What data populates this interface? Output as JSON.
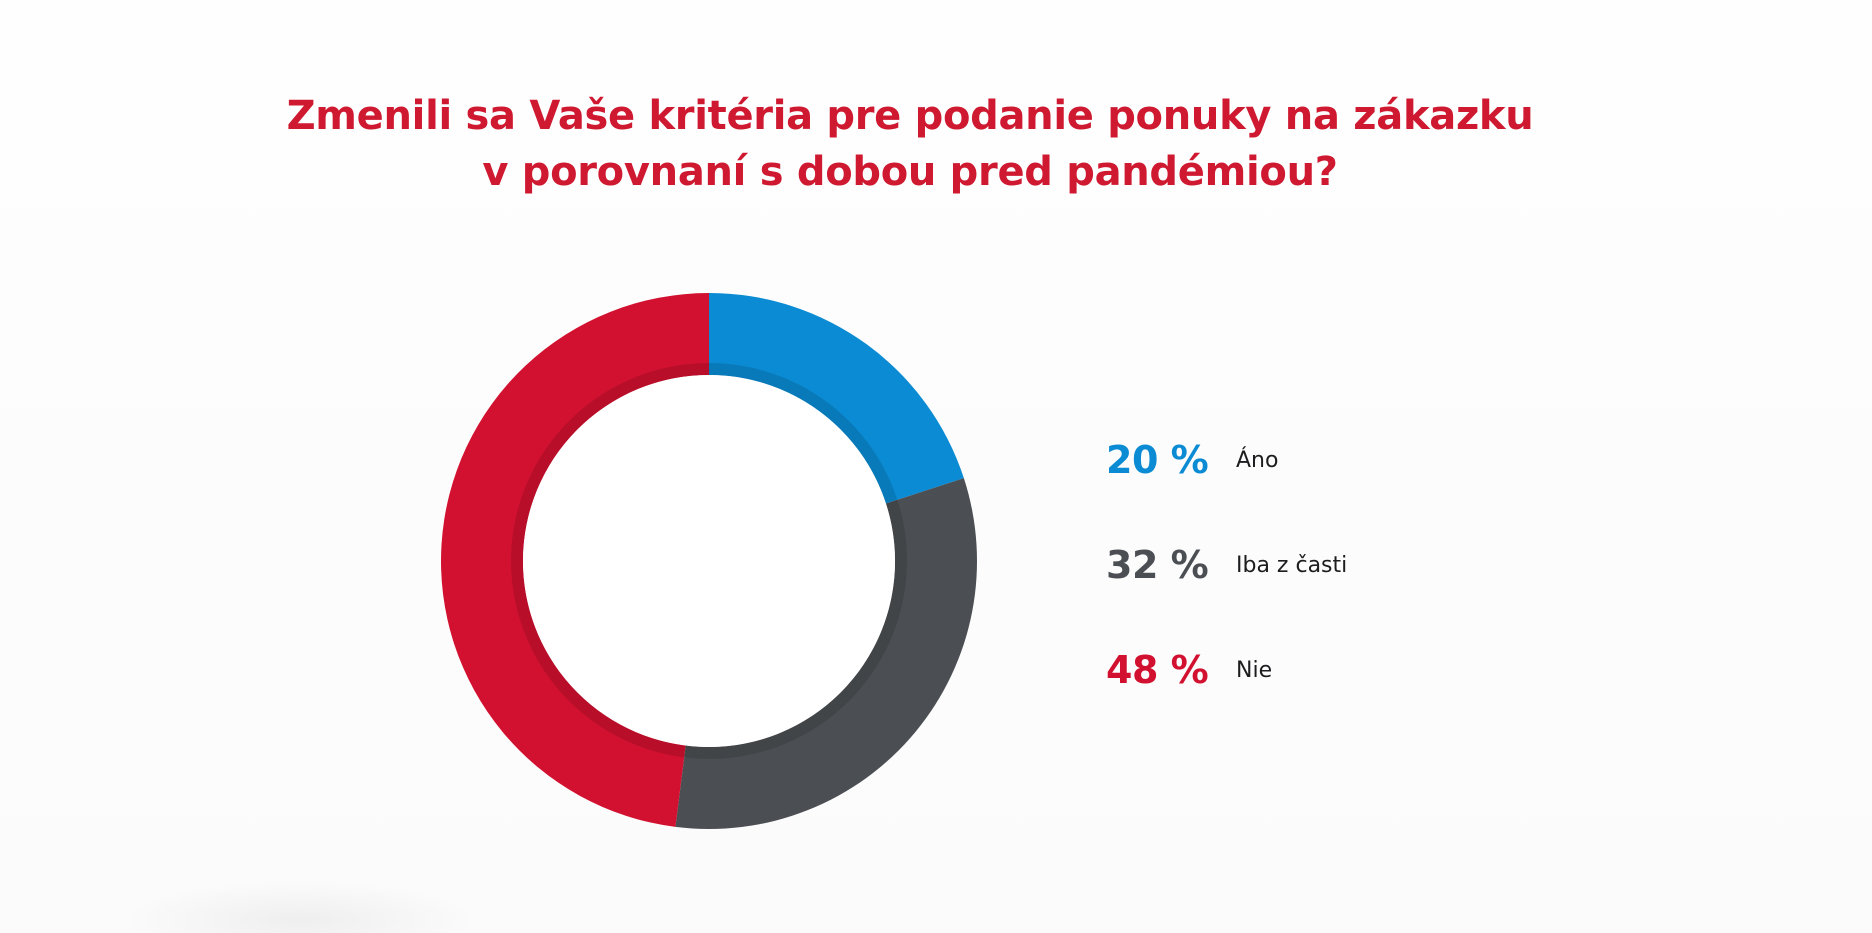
{
  "chart_data": {
    "type": "pie",
    "donut": true,
    "title_lines": [
      "Zmenili sa Vaše kritéria pre podanie ponuky na zákazku",
      "v porovnaní s dobou pred pandémiou?"
    ],
    "series": [
      {
        "name": "Áno",
        "value": 20,
        "value_label": "20 %",
        "color": "#0b8bd3"
      },
      {
        "name": "Iba z časti",
        "value": 32,
        "value_label": "32 %",
        "color": "#4b4f53"
      },
      {
        "name": "Nie",
        "value": 48,
        "value_label": "48 %",
        "color": "#d21130"
      }
    ],
    "legend_placement": "right"
  }
}
